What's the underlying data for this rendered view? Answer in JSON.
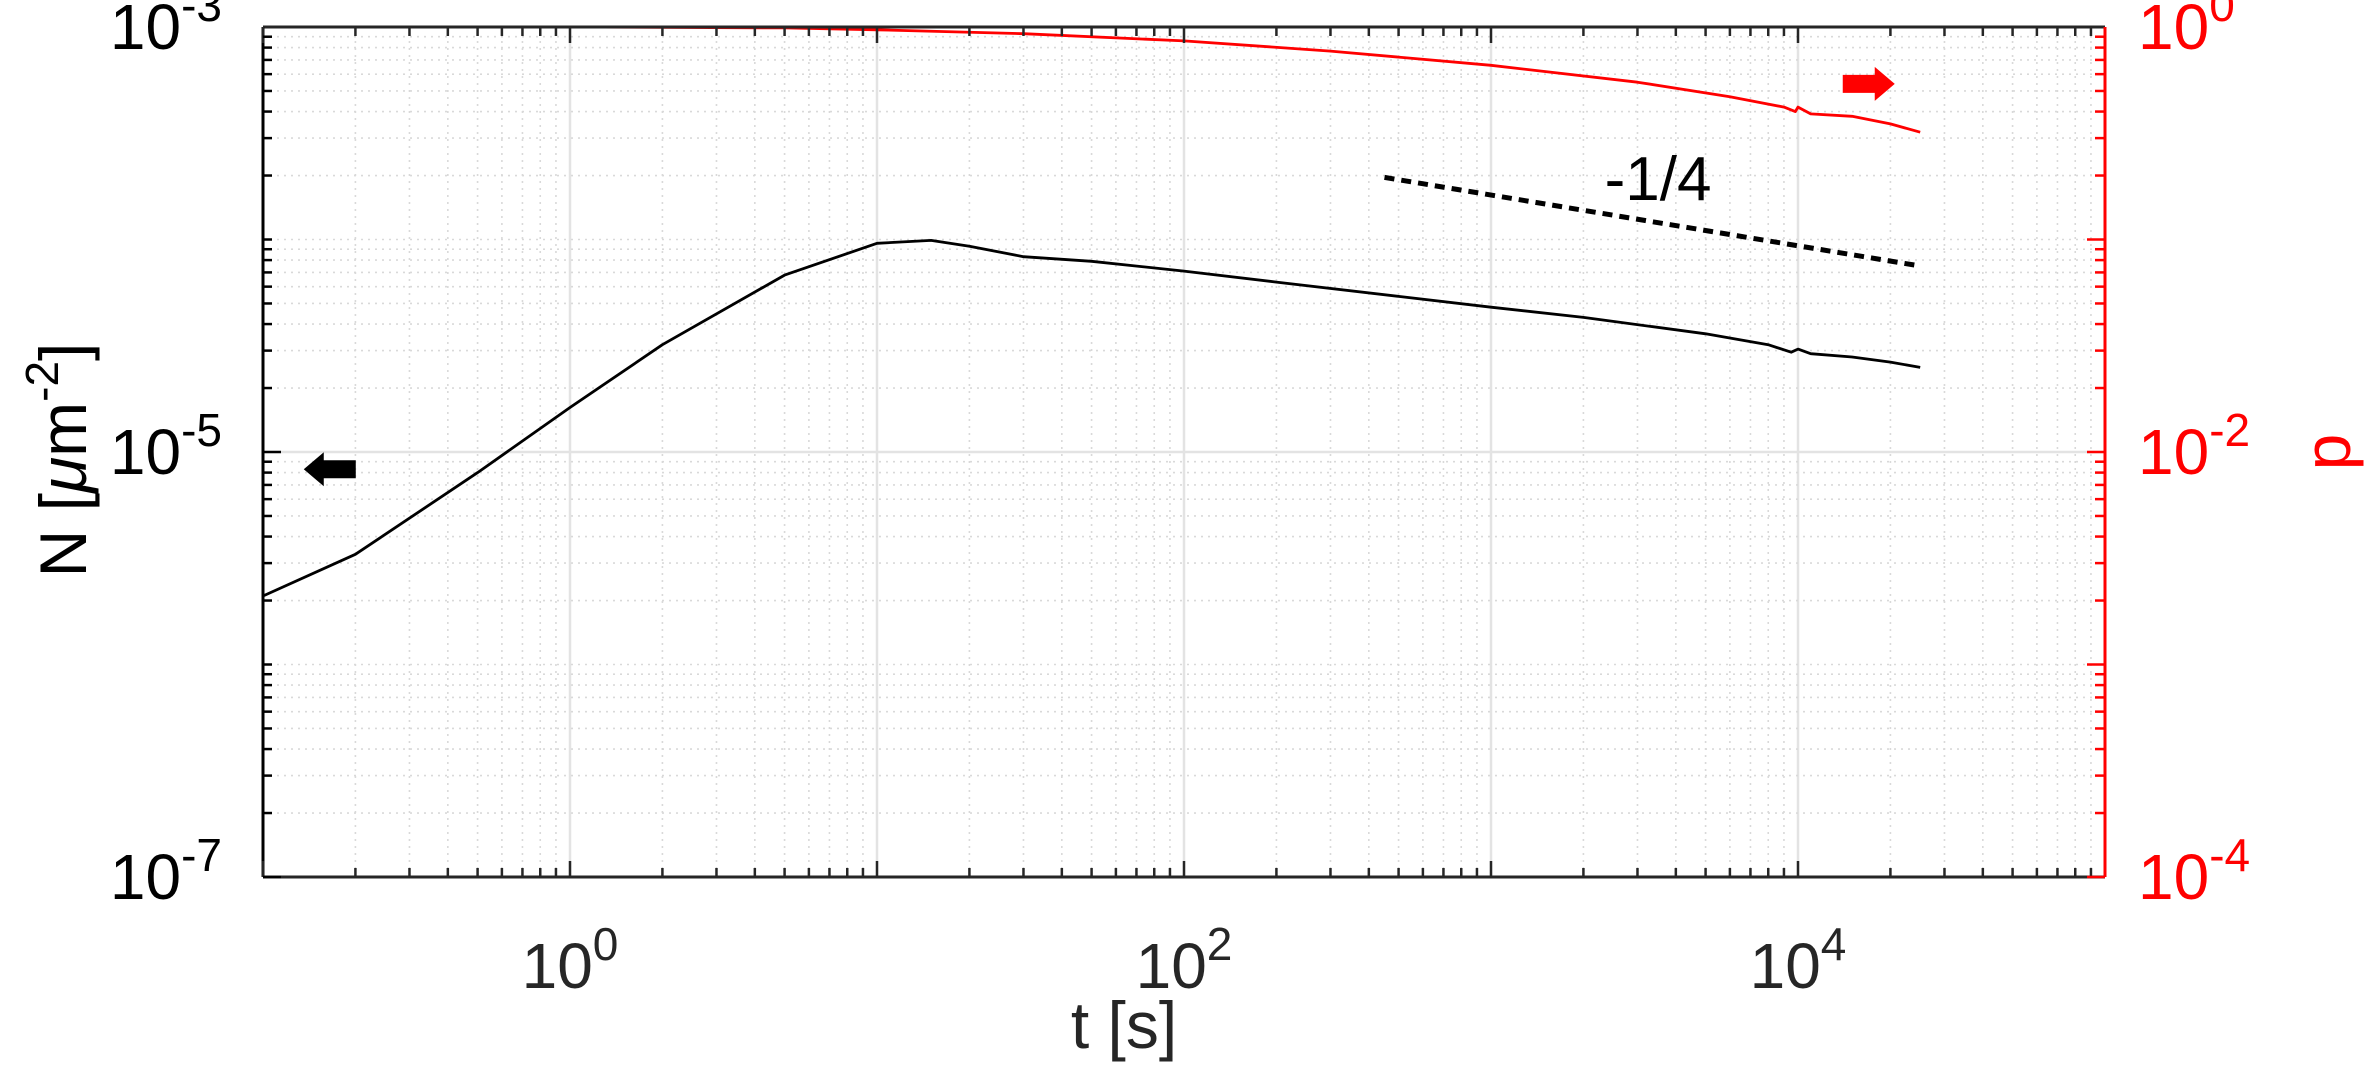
{
  "chart_data": {
    "type": "line",
    "title": "",
    "xlabel": "t [s]",
    "ylabel_left": "N [μm⁻²]",
    "ylabel_left_parts": {
      "main": "N [",
      "mu": "μ",
      "unit": "m",
      "exp": "-2",
      "close": "]"
    },
    "ylabel_right": "p",
    "x_scale": "log",
    "y_left_scale": "log",
    "y_right_scale": "log",
    "xlim": [
      0.1,
      100000
    ],
    "ylim_left": [
      1e-07,
      0.001
    ],
    "ylim_right": [
      0.0001,
      1
    ],
    "grid": true,
    "x_ticks": [
      {
        "value": 1,
        "base": "10",
        "exp": "0"
      },
      {
        "value": 100,
        "base": "10",
        "exp": "2"
      },
      {
        "value": 10000,
        "base": "10",
        "exp": "4"
      }
    ],
    "y_left_ticks": [
      {
        "value": 1e-07,
        "base": "10",
        "exp": "-7"
      },
      {
        "value": 1e-05,
        "base": "10",
        "exp": "-5"
      },
      {
        "value": 0.001,
        "base": "10",
        "exp": "-3"
      }
    ],
    "y_right_ticks": [
      {
        "value": 0.0001,
        "base": "10",
        "exp": "-4"
      },
      {
        "value": 0.01,
        "base": "10",
        "exp": "-2"
      },
      {
        "value": 1,
        "base": "10",
        "exp": "0"
      }
    ],
    "series": [
      {
        "axis": "left",
        "color": "#000000",
        "style": "solid",
        "x": [
          0.1,
          0.2,
          0.5,
          1,
          2,
          5,
          10,
          15,
          20,
          30,
          50,
          100,
          200,
          500,
          1000,
          2000,
          5000,
          8000,
          9500,
          10000,
          11000,
          15000,
          20000,
          25000
        ],
        "y": [
          2.1e-06,
          3.3e-06,
          8e-06,
          1.62e-05,
          3.2e-05,
          6.8e-05,
          9.6e-05,
          9.9e-05,
          9.3e-05,
          8.3e-05,
          7.9e-05,
          7.1e-05,
          6.3e-05,
          5.4e-05,
          4.8e-05,
          4.3e-05,
          3.6e-05,
          3.2e-05,
          2.95e-05,
          3.05e-05,
          2.9e-05,
          2.8e-05,
          2.65e-05,
          2.5e-05
        ]
      },
      {
        "axis": "right",
        "color": "#ff0000",
        "style": "solid",
        "x": [
          0.1,
          1,
          5,
          10,
          30,
          100,
          300,
          1000,
          3000,
          6000,
          9000,
          9800,
          10000,
          11000,
          15000,
          20000,
          25000
        ],
        "y": [
          1.0,
          1.0,
          0.99,
          0.97,
          0.93,
          0.86,
          0.77,
          0.66,
          0.55,
          0.47,
          0.42,
          0.4,
          0.42,
          0.39,
          0.38,
          0.35,
          0.32
        ]
      },
      {
        "axis": "left",
        "color": "#000000",
        "style": "dashed",
        "x": [
          450,
          25000
        ],
        "y": [
          0.000196,
          7.5e-05
        ]
      }
    ],
    "annotations": [
      {
        "text": "-1/4",
        "x": 3500,
        "y": 0.000195,
        "axis": "left"
      }
    ],
    "indicators": [
      {
        "direction": "left",
        "color": "#000000",
        "x": 0.165,
        "y": 8.3e-06,
        "axis": "left"
      },
      {
        "direction": "right",
        "color": "#ff0000",
        "x": 17000,
        "y": 0.54,
        "axis": "right"
      }
    ]
  }
}
